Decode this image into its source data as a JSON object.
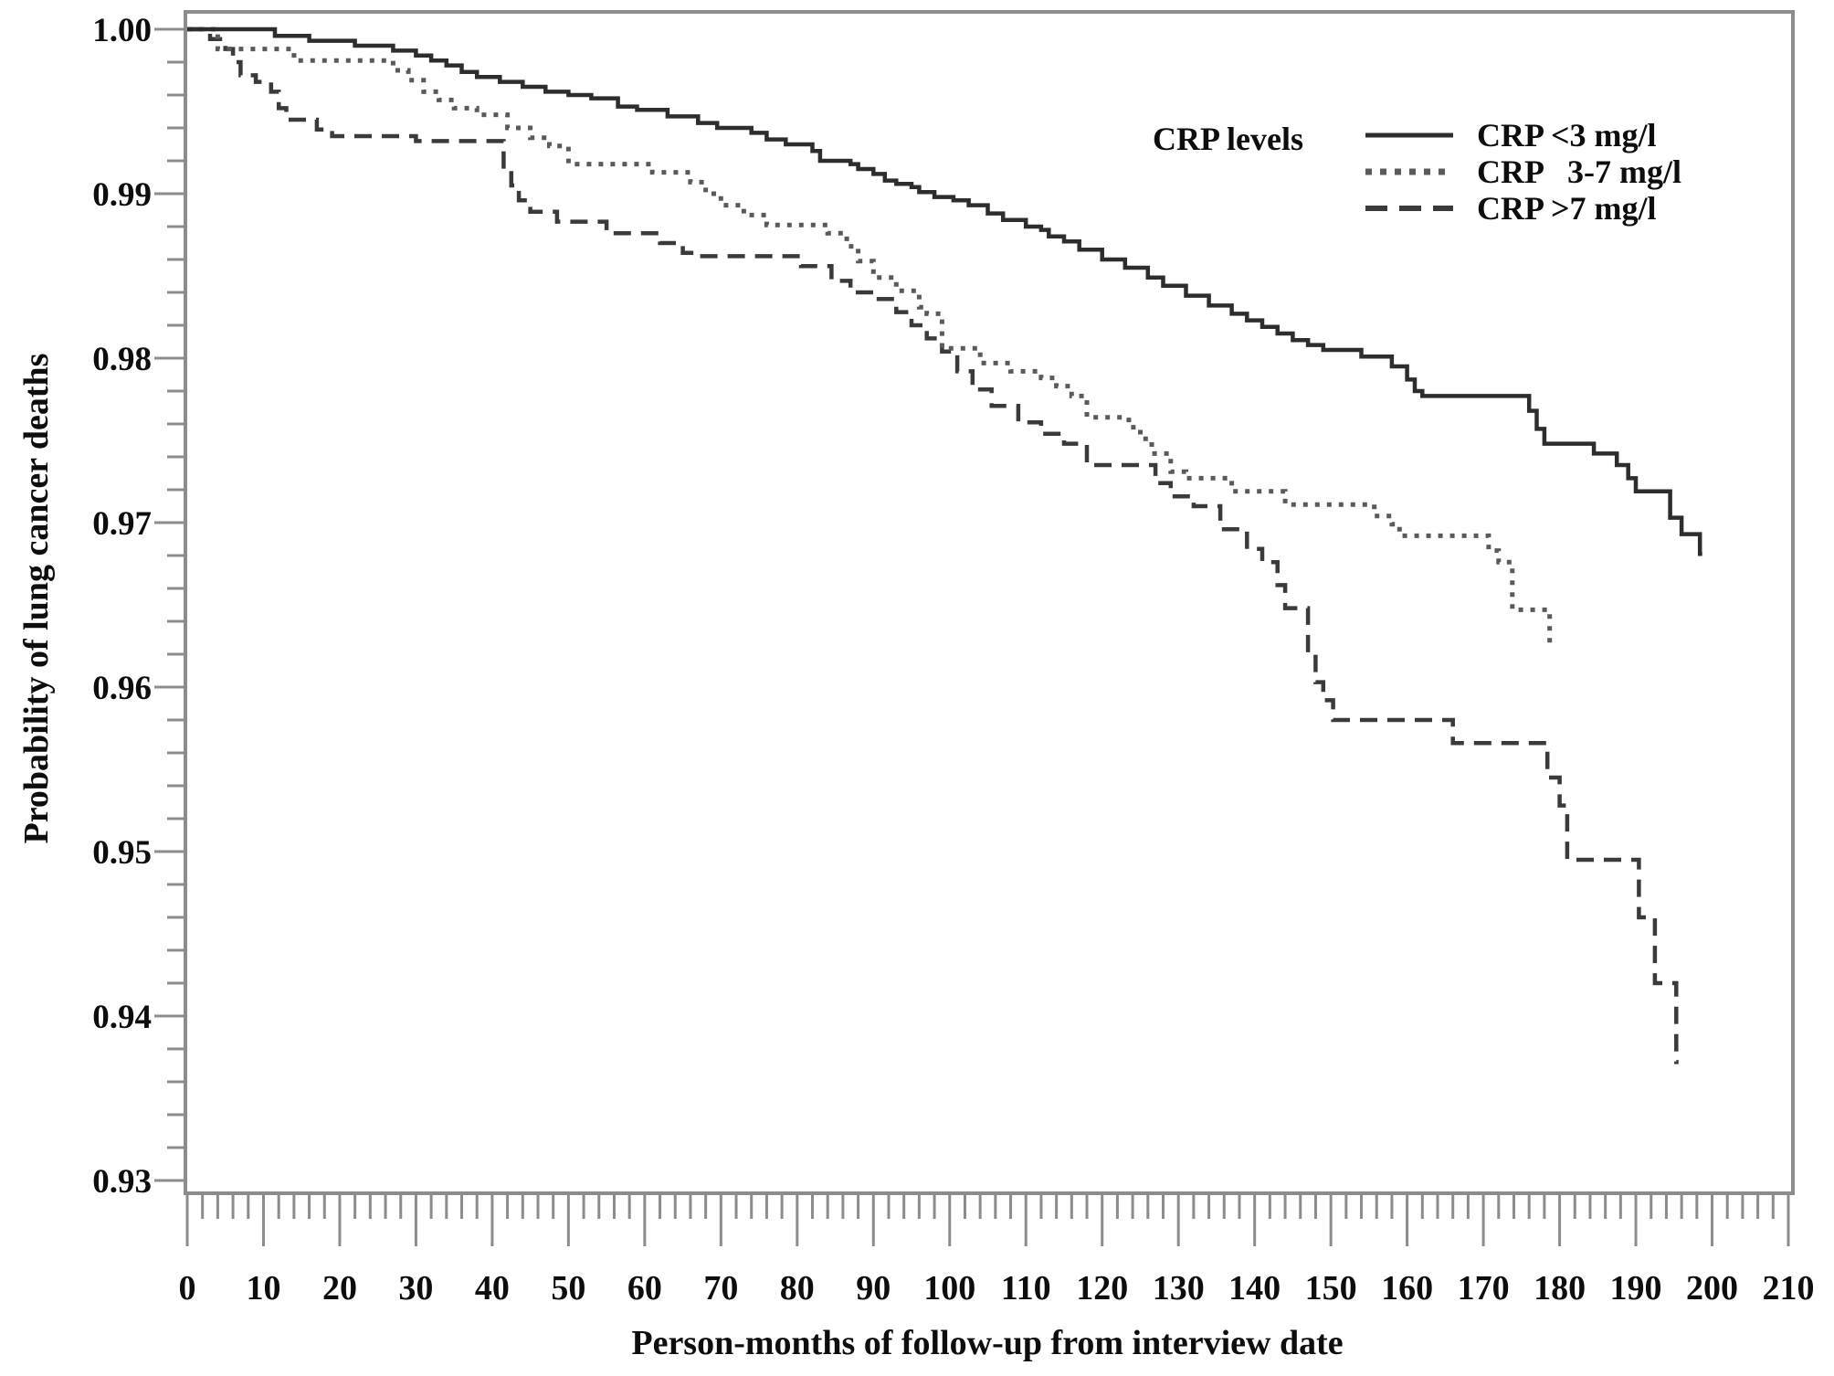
{
  "chart_data": {
    "type": "line",
    "subtype": "kaplan-meier-step-survival",
    "title": "",
    "xlabel": "Person-months of follow-up from interview date",
    "ylabel": "Probability of lung cancer deaths",
    "xlim": [
      0,
      210
    ],
    "ylim": [
      0.93,
      1.0
    ],
    "grid": "off",
    "x_major_tick_interval": 10,
    "x_minor_tick_interval": 2,
    "y_major_tick_interval": 0.01,
    "y_minor_tick_interval": 0.002,
    "x_tick_labels": [
      "0",
      "10",
      "20",
      "30",
      "40",
      "50",
      "60",
      "70",
      "80",
      "90",
      "100",
      "110",
      "120",
      "130",
      "140",
      "150",
      "160",
      "170",
      "180",
      "190",
      "200",
      "210"
    ],
    "y_tick_labels": [
      "1.00",
      "0.99",
      "0.98",
      "0.97",
      "0.96",
      "0.95",
      "0.94",
      "0.93"
    ],
    "legend": {
      "title": "CRP levels",
      "position": "upper-right-inside",
      "entries": [
        {
          "label": "CRP <3 mg/l",
          "style": "solid",
          "dash": "none",
          "color": "#2d2d2d"
        },
        {
          "label": "CRP   3-7 mg/l",
          "style": "dotted",
          "dash": "7 9",
          "color": "#5a5a5a"
        },
        {
          "label": "CRP >7 mg/l",
          "style": "dashed",
          "dash": "24 13",
          "color": "#3a3a3a"
        }
      ]
    },
    "series": [
      {
        "name": "CRP >7 mg/l",
        "style": "dashed",
        "color": "#3a3a3a",
        "dash": "19 11",
        "width": 4.5,
        "end_month": 195.6,
        "points": [
          [
            0,
            1.0
          ],
          [
            3,
            0.9994
          ],
          [
            5,
            0.9988
          ],
          [
            6,
            0.998
          ],
          [
            7,
            0.9972
          ],
          [
            9,
            0.9968
          ],
          [
            11,
            0.9962
          ],
          [
            12,
            0.9952
          ],
          [
            13,
            0.9945
          ],
          [
            17,
            0.9939
          ],
          [
            19,
            0.9935
          ],
          [
            30,
            0.9932
          ],
          [
            41.5,
            0.9915
          ],
          [
            42.5,
            0.9905
          ],
          [
            43.5,
            0.9896
          ],
          [
            45,
            0.9889
          ],
          [
            48.5,
            0.9883
          ],
          [
            55,
            0.9876
          ],
          [
            62,
            0.987
          ],
          [
            65,
            0.9864
          ],
          [
            67,
            0.9862
          ],
          [
            80.5,
            0.9856
          ],
          [
            84.5,
            0.9847
          ],
          [
            87,
            0.984
          ],
          [
            90,
            0.9836
          ],
          [
            93,
            0.9828
          ],
          [
            95,
            0.982
          ],
          [
            97,
            0.9812
          ],
          [
            99,
            0.9804
          ],
          [
            101,
            0.9792
          ],
          [
            103,
            0.9781
          ],
          [
            105.5,
            0.9771
          ],
          [
            109,
            0.9761
          ],
          [
            112,
            0.9754
          ],
          [
            115,
            0.9748
          ],
          [
            118,
            0.9735
          ],
          [
            127,
            0.9724
          ],
          [
            129,
            0.9716
          ],
          [
            132,
            0.971
          ],
          [
            135.5,
            0.9696
          ],
          [
            139,
            0.9684
          ],
          [
            141,
            0.9676
          ],
          [
            143,
            0.9662
          ],
          [
            144,
            0.9648
          ],
          [
            147,
            0.962
          ],
          [
            148,
            0.9603
          ],
          [
            149,
            0.9592
          ],
          [
            150.3,
            0.958
          ],
          [
            166,
            0.9566
          ],
          [
            178.4,
            0.9545
          ],
          [
            180,
            0.9528
          ],
          [
            181,
            0.9495
          ],
          [
            190.4,
            0.946
          ],
          [
            192.5,
            0.942
          ],
          [
            195.3,
            0.9372
          ]
        ]
      },
      {
        "name": "CRP 3-7 mg/l",
        "style": "dotted",
        "color": "#5a5a5a",
        "dash": "5 8",
        "width": 5,
        "end_month": 179.0,
        "points": [
          [
            0,
            1.0
          ],
          [
            4,
            0.9988
          ],
          [
            14,
            0.9981
          ],
          [
            27,
            0.9975
          ],
          [
            29,
            0.9969
          ],
          [
            31,
            0.9962
          ],
          [
            33,
            0.9957
          ],
          [
            35,
            0.9952
          ],
          [
            38,
            0.9948
          ],
          [
            42,
            0.994
          ],
          [
            45,
            0.9934
          ],
          [
            47.5,
            0.9929
          ],
          [
            50,
            0.9918
          ],
          [
            61,
            0.9913
          ],
          [
            66,
            0.9907
          ],
          [
            68,
            0.99
          ],
          [
            70,
            0.9893
          ],
          [
            73,
            0.9887
          ],
          [
            76,
            0.9881
          ],
          [
            84,
            0.9876
          ],
          [
            86.5,
            0.9868
          ],
          [
            88,
            0.9859
          ],
          [
            90,
            0.9849
          ],
          [
            93,
            0.9841
          ],
          [
            96,
            0.9831
          ],
          [
            97,
            0.9827
          ],
          [
            99,
            0.9806
          ],
          [
            104,
            0.9797
          ],
          [
            108,
            0.9792
          ],
          [
            112,
            0.9788
          ],
          [
            114,
            0.9783
          ],
          [
            116,
            0.9777
          ],
          [
            118,
            0.9764
          ],
          [
            123.5,
            0.9758
          ],
          [
            125,
            0.9751
          ],
          [
            126.5,
            0.9742
          ],
          [
            129,
            0.9731
          ],
          [
            131,
            0.9727
          ],
          [
            137,
            0.9719
          ],
          [
            144,
            0.9711
          ],
          [
            155.7,
            0.9704
          ],
          [
            158,
            0.9699
          ],
          [
            159,
            0.9692
          ],
          [
            170.7,
            0.9683
          ],
          [
            172,
            0.9676
          ],
          [
            173.8,
            0.9647
          ],
          [
            178.7,
            0.9627
          ]
        ]
      },
      {
        "name": "CRP <3 mg/l",
        "style": "solid",
        "color": "#2d2d2d",
        "dash": "none",
        "width": 4.5,
        "end_month": 198.7,
        "points": [
          [
            0,
            1.0
          ],
          [
            11.5,
            0.9996
          ],
          [
            16,
            0.9993
          ],
          [
            22,
            0.999
          ],
          [
            27,
            0.9987
          ],
          [
            30,
            0.9984
          ],
          [
            32,
            0.9981
          ],
          [
            34,
            0.9978
          ],
          [
            36,
            0.9974
          ],
          [
            38,
            0.9971
          ],
          [
            41,
            0.9968
          ],
          [
            44,
            0.9965
          ],
          [
            47,
            0.9962
          ],
          [
            50,
            0.996
          ],
          [
            53,
            0.9958
          ],
          [
            56.5,
            0.9953
          ],
          [
            59,
            0.9951
          ],
          [
            63,
            0.9947
          ],
          [
            67,
            0.9943
          ],
          [
            69.5,
            0.994
          ],
          [
            74,
            0.9937
          ],
          [
            76,
            0.9933
          ],
          [
            78.5,
            0.993
          ],
          [
            82,
            0.9926
          ],
          [
            83,
            0.992
          ],
          [
            87,
            0.9918
          ],
          [
            88,
            0.9915
          ],
          [
            90,
            0.9912
          ],
          [
            91.5,
            0.9908
          ],
          [
            93,
            0.9906
          ],
          [
            95,
            0.9904
          ],
          [
            96,
            0.9901
          ],
          [
            98,
            0.9898
          ],
          [
            100.5,
            0.9896
          ],
          [
            102.5,
            0.9893
          ],
          [
            105,
            0.9888
          ],
          [
            107,
            0.9884
          ],
          [
            110,
            0.988
          ],
          [
            112,
            0.9878
          ],
          [
            113,
            0.9874
          ],
          [
            115,
            0.9871
          ],
          [
            117,
            0.9866
          ],
          [
            120,
            0.986
          ],
          [
            123,
            0.9855
          ],
          [
            126,
            0.9849
          ],
          [
            128,
            0.9844
          ],
          [
            131,
            0.9838
          ],
          [
            134,
            0.9832
          ],
          [
            137,
            0.9827
          ],
          [
            139,
            0.9823
          ],
          [
            141,
            0.9819
          ],
          [
            143,
            0.9815
          ],
          [
            145,
            0.9811
          ],
          [
            147,
            0.9808
          ],
          [
            149,
            0.9805
          ],
          [
            154,
            0.9801
          ],
          [
            158,
            0.9795
          ],
          [
            160,
            0.9787
          ],
          [
            161,
            0.978
          ],
          [
            162,
            0.9777
          ],
          [
            176,
            0.9768
          ],
          [
            177,
            0.9757
          ],
          [
            178,
            0.9748
          ],
          [
            184.5,
            0.9742
          ],
          [
            187.5,
            0.9735
          ],
          [
            189,
            0.9727
          ],
          [
            190,
            0.9719
          ],
          [
            194.5,
            0.9703
          ],
          [
            196,
            0.9693
          ],
          [
            198.4,
            0.9681
          ]
        ]
      }
    ]
  },
  "colors": {
    "background": "#ffffff",
    "frame_and_ticks": "#8c8c8c",
    "text": "#0d0d0d"
  }
}
